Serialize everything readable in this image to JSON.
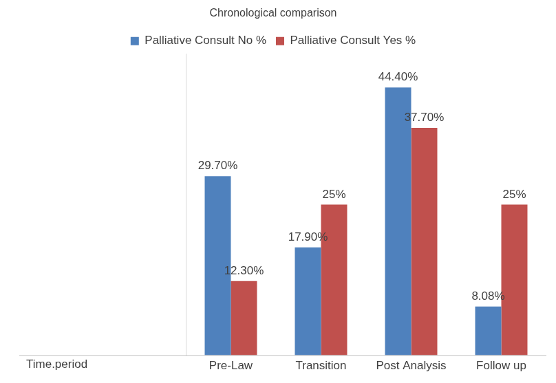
{
  "chart_data": {
    "type": "bar",
    "title": "Chronological comparison",
    "x_label": "Time.period",
    "categories": [
      "Pre-Law",
      "Transition",
      "Post Analysis",
      "Follow up"
    ],
    "series": [
      {
        "name": "Palliative Consult No %",
        "color": "#4f81bd",
        "values": [
          29.7,
          17.9,
          44.4,
          8.08
        ],
        "value_labels": [
          "29.70%",
          "17.90%",
          "44.40%",
          "8.08%"
        ]
      },
      {
        "name": "Palliative Consult Yes %",
        "color": "#c0504d",
        "values": [
          12.3,
          25,
          37.7,
          25
        ],
        "value_labels": [
          "12.30%",
          "25%",
          "37.70%",
          "25%"
        ]
      }
    ],
    "ylim": [
      0,
      50
    ],
    "grid": false,
    "legend": "top",
    "data_labels": true,
    "tick_labels": "x"
  }
}
